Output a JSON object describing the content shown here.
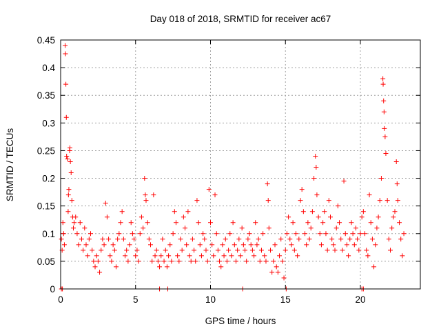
{
  "chart_data": {
    "type": "scatter",
    "title": "Day 018 of 2018, SRMTID for receiver ac67",
    "xlabel": "GPS time / hours",
    "ylabel": "SRMTID / TECUs",
    "xlim": [
      0,
      24
    ],
    "ylim": [
      0,
      0.45
    ],
    "x_ticks": [
      0,
      5,
      10,
      15,
      20
    ],
    "x_tick_labels": [
      "0",
      "5",
      "10",
      "15",
      "20"
    ],
    "y_ticks": [
      0,
      0.05,
      0.1,
      0.15,
      0.2,
      0.25,
      0.3,
      0.35,
      0.4,
      0.45
    ],
    "y_tick_labels": [
      "0",
      "0.05",
      "0.1",
      "0.15",
      "0.2",
      "0.25",
      "0.3",
      "0.35",
      "0.4",
      "0.45"
    ],
    "grid": true,
    "marker": "+",
    "colors": {
      "series": "#ff0000",
      "grid": "#a0a0a0",
      "axes": "#000000"
    },
    "series": [
      {
        "name": "SRMTID",
        "points": [
          [
            0.05,
            0.09
          ],
          [
            0.1,
            0.07
          ],
          [
            0.15,
            0.12
          ],
          [
            0.2,
            0.1
          ],
          [
            0.25,
            0.08
          ],
          [
            0.3,
            0.44
          ],
          [
            0.32,
            0.425
          ],
          [
            0.35,
            0.37
          ],
          [
            0.38,
            0.31
          ],
          [
            0.4,
            0.24
          ],
          [
            0.45,
            0.235
          ],
          [
            0.5,
            0.14
          ],
          [
            0.52,
            0.17
          ],
          [
            0.55,
            0.18
          ],
          [
            0.6,
            0.25
          ],
          [
            0.62,
            0.255
          ],
          [
            0.65,
            0.23
          ],
          [
            0.7,
            0.21
          ],
          [
            0.75,
            0.16
          ],
          [
            0.8,
            0.13
          ],
          [
            0.85,
            0.11
          ],
          [
            0.9,
            0.12
          ],
          [
            1.0,
            0.13
          ],
          [
            1.1,
            0.1
          ],
          [
            1.2,
            0.08
          ],
          [
            1.3,
            0.12
          ],
          [
            1.4,
            0.09
          ],
          [
            1.5,
            0.07
          ],
          [
            1.6,
            0.11
          ],
          [
            1.7,
            0.08
          ],
          [
            1.8,
            0.06
          ],
          [
            1.9,
            0.09
          ],
          [
            2.0,
            0.1
          ],
          [
            2.1,
            0.07
          ],
          [
            2.2,
            0.05
          ],
          [
            2.3,
            0.04
          ],
          [
            2.4,
            0.06
          ],
          [
            2.5,
            0.05
          ],
          [
            2.6,
            0.03
          ],
          [
            2.7,
            0.07
          ],
          [
            2.8,
            0.09
          ],
          [
            2.9,
            0.08
          ],
          [
            3.0,
            0.155
          ],
          [
            3.1,
            0.13
          ],
          [
            3.2,
            0.09
          ],
          [
            3.3,
            0.06
          ],
          [
            3.4,
            0.05
          ],
          [
            3.5,
            0.08
          ],
          [
            3.6,
            0.07
          ],
          [
            3.7,
            0.04
          ],
          [
            3.8,
            0.09
          ],
          [
            3.9,
            0.1
          ],
          [
            4.0,
            0.12
          ],
          [
            4.1,
            0.14
          ],
          [
            4.2,
            0.09
          ],
          [
            4.3,
            0.06
          ],
          [
            4.4,
            0.07
          ],
          [
            4.5,
            0.05
          ],
          [
            4.6,
            0.08
          ],
          [
            4.7,
            0.12
          ],
          [
            4.8,
            0.1
          ],
          [
            4.9,
            0.09
          ],
          [
            5.0,
            0.06
          ],
          [
            5.1,
            0.07
          ],
          [
            5.2,
            0.05
          ],
          [
            5.3,
            0.1
          ],
          [
            5.4,
            0.13
          ],
          [
            5.5,
            0.11
          ],
          [
            5.6,
            0.2
          ],
          [
            5.65,
            0.17
          ],
          [
            5.7,
            0.16
          ],
          [
            5.8,
            0.12
          ],
          [
            5.9,
            0.09
          ],
          [
            6.0,
            0.08
          ],
          [
            6.1,
            0.05
          ],
          [
            6.2,
            0.17
          ],
          [
            6.3,
            0.06
          ],
          [
            6.4,
            0.07
          ],
          [
            6.5,
            0.05
          ],
          [
            6.6,
            0.04
          ],
          [
            6.7,
            0.06
          ],
          [
            6.8,
            0.09
          ],
          [
            6.9,
            0.05
          ],
          [
            7.0,
            0.07
          ],
          [
            7.1,
            0.04
          ],
          [
            7.2,
            0.06
          ],
          [
            7.3,
            0.08
          ],
          [
            7.4,
            0.05
          ],
          [
            7.5,
            0.1
          ],
          [
            7.6,
            0.14
          ],
          [
            7.7,
            0.12
          ],
          [
            7.8,
            0.06
          ],
          [
            7.9,
            0.05
          ],
          [
            8.0,
            0.09
          ],
          [
            8.1,
            0.07
          ],
          [
            8.2,
            0.13
          ],
          [
            8.3,
            0.11
          ],
          [
            8.4,
            0.08
          ],
          [
            8.5,
            0.14
          ],
          [
            8.6,
            0.06
          ],
          [
            8.7,
            0.05
          ],
          [
            8.8,
            0.09
          ],
          [
            8.9,
            0.07
          ],
          [
            9.0,
            0.05
          ],
          [
            9.1,
            0.16
          ],
          [
            9.2,
            0.12
          ],
          [
            9.3,
            0.08
          ],
          [
            9.4,
            0.06
          ],
          [
            9.5,
            0.1
          ],
          [
            9.6,
            0.09
          ],
          [
            9.7,
            0.07
          ],
          [
            9.8,
            0.05
          ],
          [
            9.9,
            0.18
          ],
          [
            10.0,
            0.12
          ],
          [
            10.1,
            0.08
          ],
          [
            10.2,
            0.06
          ],
          [
            10.3,
            0.17
          ],
          [
            10.4,
            0.1
          ],
          [
            10.5,
            0.07
          ],
          [
            10.6,
            0.05
          ],
          [
            10.7,
            0.04
          ],
          [
            10.8,
            0.08
          ],
          [
            10.9,
            0.06
          ],
          [
            11.0,
            0.09
          ],
          [
            11.1,
            0.05
          ],
          [
            11.2,
            0.07
          ],
          [
            11.3,
            0.1
          ],
          [
            11.4,
            0.06
          ],
          [
            11.5,
            0.12
          ],
          [
            11.6,
            0.08
          ],
          [
            11.7,
            0.05
          ],
          [
            11.8,
            0.07
          ],
          [
            11.9,
            0.09
          ],
          [
            12.0,
            0.06
          ],
          [
            12.1,
            0.11
          ],
          [
            12.2,
            0.08
          ],
          [
            12.3,
            0.07
          ],
          [
            12.4,
            0.05
          ],
          [
            12.5,
            0.09
          ],
          [
            12.6,
            0.1
          ],
          [
            12.7,
            0.08
          ],
          [
            12.8,
            0.07
          ],
          [
            12.9,
            0.06
          ],
          [
            13.0,
            0.12
          ],
          [
            13.1,
            0.08
          ],
          [
            13.2,
            0.09
          ],
          [
            13.3,
            0.05
          ],
          [
            13.4,
            0.07
          ],
          [
            13.5,
            0.1
          ],
          [
            13.6,
            0.06
          ],
          [
            13.7,
            0.05
          ],
          [
            13.8,
            0.19
          ],
          [
            13.85,
            0.16
          ],
          [
            13.9,
            0.11
          ],
          [
            14.0,
            0.07
          ],
          [
            14.1,
            0.03
          ],
          [
            14.2,
            0.05
          ],
          [
            14.3,
            0.08
          ],
          [
            14.4,
            0.04
          ],
          [
            14.5,
            0.03
          ],
          [
            14.6,
            0.06
          ],
          [
            14.7,
            0.09
          ],
          [
            14.8,
            0.05
          ],
          [
            14.9,
            0.02
          ],
          [
            15.0,
            0.07
          ],
          [
            15.1,
            0.1
          ],
          [
            15.2,
            0.13
          ],
          [
            15.3,
            0.09
          ],
          [
            15.4,
            0.08
          ],
          [
            15.5,
            0.12
          ],
          [
            15.6,
            0.07
          ],
          [
            15.7,
            0.1
          ],
          [
            15.8,
            0.06
          ],
          [
            15.9,
            0.09
          ],
          [
            16.0,
            0.16
          ],
          [
            16.1,
            0.18
          ],
          [
            16.2,
            0.14
          ],
          [
            16.3,
            0.1
          ],
          [
            16.4,
            0.08
          ],
          [
            16.5,
            0.12
          ],
          [
            16.6,
            0.09
          ],
          [
            16.7,
            0.11
          ],
          [
            16.8,
            0.14
          ],
          [
            16.9,
            0.2
          ],
          [
            17.0,
            0.24
          ],
          [
            17.05,
            0.22
          ],
          [
            17.1,
            0.17
          ],
          [
            17.2,
            0.13
          ],
          [
            17.3,
            0.1
          ],
          [
            17.4,
            0.08
          ],
          [
            17.5,
            0.12
          ],
          [
            17.6,
            0.14
          ],
          [
            17.7,
            0.1
          ],
          [
            17.8,
            0.07
          ],
          [
            17.9,
            0.16
          ],
          [
            18.0,
            0.13
          ],
          [
            18.1,
            0.09
          ],
          [
            18.2,
            0.08
          ],
          [
            18.3,
            0.07
          ],
          [
            18.4,
            0.11
          ],
          [
            18.5,
            0.15
          ],
          [
            18.6,
            0.12
          ],
          [
            18.7,
            0.09
          ],
          [
            18.8,
            0.07
          ],
          [
            18.9,
            0.195
          ],
          [
            19.0,
            0.1
          ],
          [
            19.1,
            0.08
          ],
          [
            19.2,
            0.06
          ],
          [
            19.3,
            0.09
          ],
          [
            19.4,
            0.12
          ],
          [
            19.5,
            0.1
          ],
          [
            19.6,
            0.08
          ],
          [
            19.7,
            0.11
          ],
          [
            19.8,
            0.09
          ],
          [
            19.9,
            0.07
          ],
          [
            20.0,
            0.1
          ],
          [
            20.1,
            0.13
          ],
          [
            20.2,
            0.14
          ],
          [
            20.3,
            0.1
          ],
          [
            20.4,
            0.07
          ],
          [
            20.5,
            0.06
          ],
          [
            20.6,
            0.17
          ],
          [
            20.7,
            0.12
          ],
          [
            20.8,
            0.09
          ],
          [
            20.9,
            0.04
          ],
          [
            21.0,
            0.08
          ],
          [
            21.1,
            0.11
          ],
          [
            21.2,
            0.13
          ],
          [
            21.3,
            0.16
          ],
          [
            21.4,
            0.2
          ],
          [
            21.5,
            0.38
          ],
          [
            21.52,
            0.37
          ],
          [
            21.55,
            0.34
          ],
          [
            21.58,
            0.32
          ],
          [
            21.6,
            0.29
          ],
          [
            21.65,
            0.275
          ],
          [
            21.7,
            0.245
          ],
          [
            21.8,
            0.16
          ],
          [
            21.9,
            0.09
          ],
          [
            22.0,
            0.07
          ],
          [
            22.1,
            0.11
          ],
          [
            22.2,
            0.13
          ],
          [
            22.3,
            0.14
          ],
          [
            22.4,
            0.23
          ],
          [
            22.45,
            0.19
          ],
          [
            22.5,
            0.16
          ],
          [
            22.6,
            0.12
          ],
          [
            22.7,
            0.09
          ],
          [
            22.8,
            0.06
          ],
          [
            22.9,
            0.1
          ]
        ]
      }
    ],
    "zero_points": [
      0.05,
      0.12,
      6.6,
      7.15,
      12.15,
      15.05,
      20.1,
      20.2
    ]
  }
}
